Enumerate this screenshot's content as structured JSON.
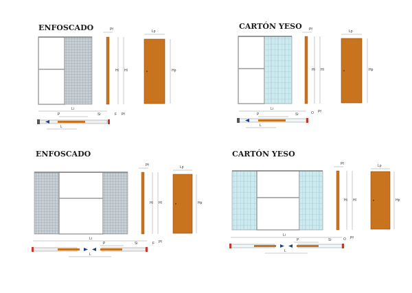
{
  "panels": [
    {
      "title": "ENFOSCADO",
      "labels": {
        "pf": "Pf",
        "hi": "Hi",
        "hl": "Hl",
        "lp": "Lp",
        "hp": "Hp",
        "li": "Li",
        "si": "Si",
        "p": "P",
        "f": "F",
        "l": "L"
      }
    },
    {
      "title": "CARTÓN YESO",
      "labels": {
        "pf": "Pf",
        "hi": "Hi",
        "hl": "Hl",
        "lp": "Lp",
        "hp": "Hp",
        "li": "Li",
        "si": "Si",
        "p": "P",
        "o": "O",
        "l": "L"
      }
    },
    {
      "title": "ENFOSCADO",
      "labels": {
        "pf": "Pf",
        "hi": "Hi",
        "hl": "Hl",
        "lp": "Lp",
        "hp": "Hp",
        "li": "Li",
        "si": "Si",
        "p": "P",
        "f": "F",
        "l": "L"
      }
    },
    {
      "title": "CARTÓN YESO",
      "labels": {
        "pf": "Pf",
        "hi": "Hi",
        "hl": "Hl",
        "lp": "Lp",
        "hp": "Hp",
        "li": "Li",
        "si": "Si",
        "p": "P",
        "o": "O",
        "l": "L"
      }
    }
  ],
  "colors": {
    "door": "#c8741f",
    "mesh": "#9aa6ad",
    "gypsum": "#bfe3ea"
  }
}
